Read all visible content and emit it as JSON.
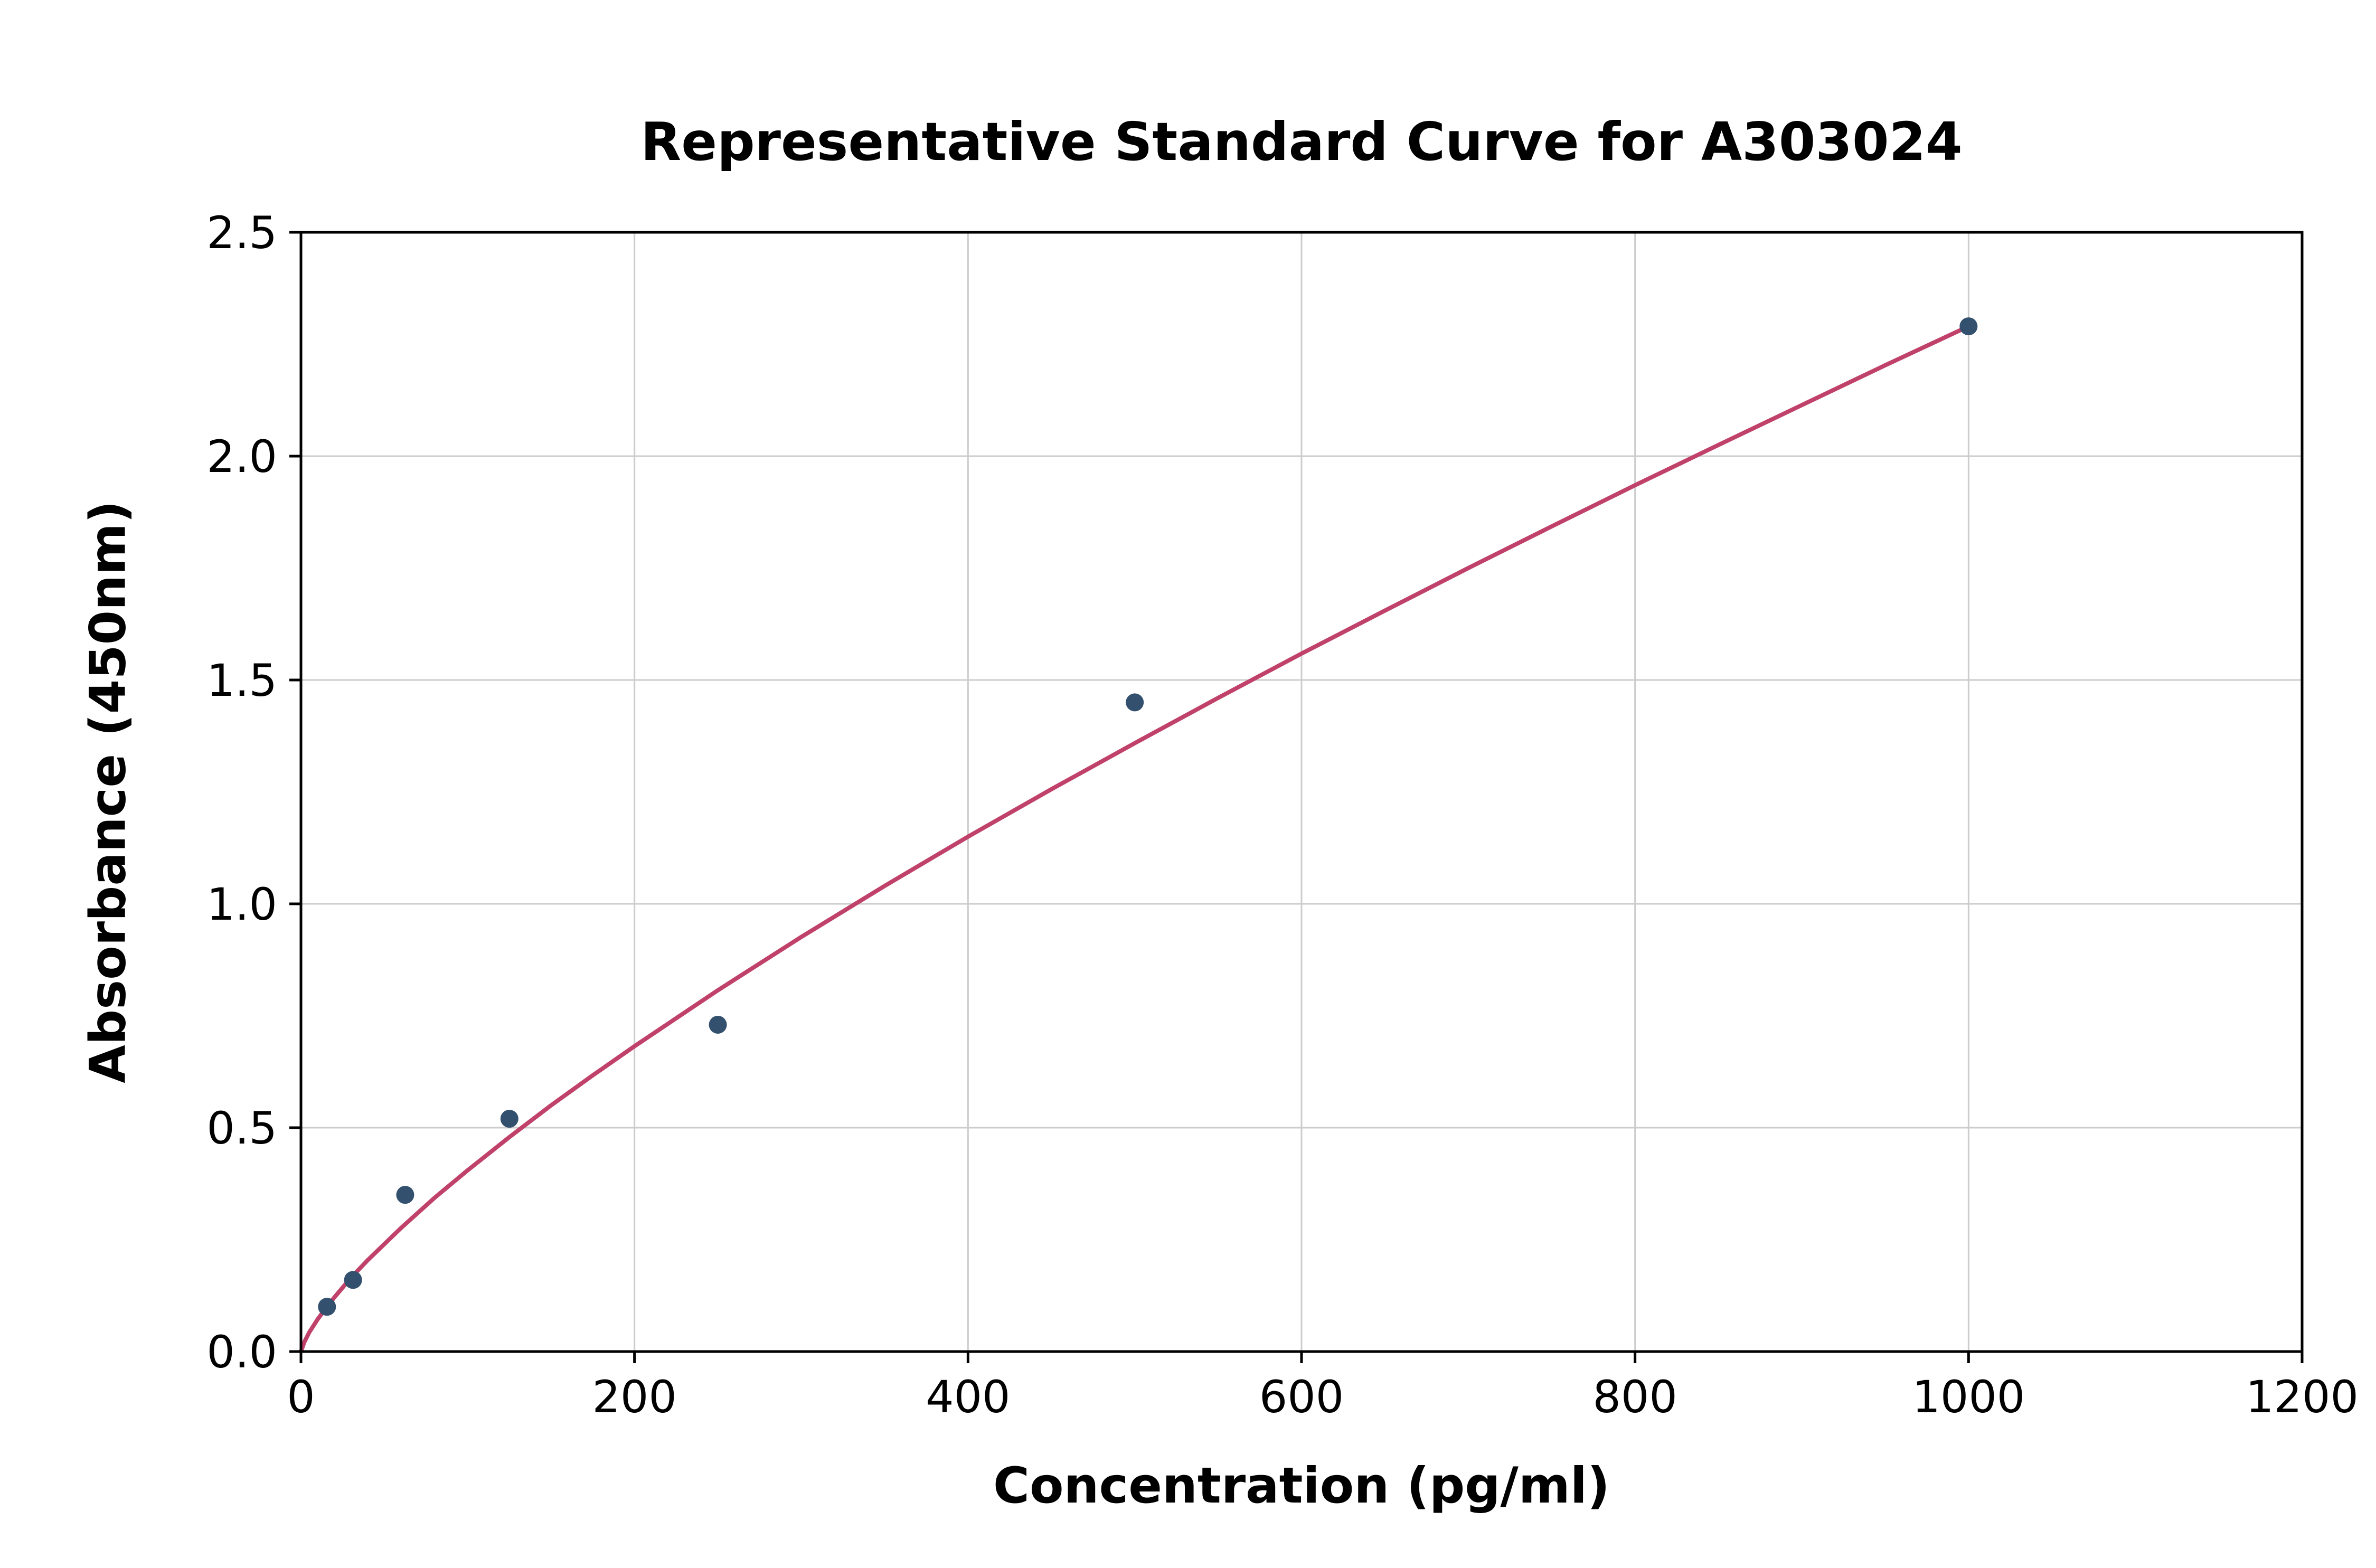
{
  "chart_data": {
    "type": "scatter",
    "title": "Representative Standard Curve for A303024",
    "xlabel": "Concentration (pg/ml)",
    "ylabel": "Absorbance (450nm)",
    "xlim": [
      0,
      1200
    ],
    "ylim": [
      0,
      2.5
    ],
    "x_ticks": [
      0,
      200,
      400,
      600,
      800,
      1000,
      1200
    ],
    "y_ticks": [
      0.0,
      0.5,
      1.0,
      1.5,
      2.0,
      2.5
    ],
    "grid": true,
    "legend": "none",
    "points": {
      "x": [
        15.6,
        31.25,
        62.5,
        125,
        250,
        500,
        1000
      ],
      "y": [
        0.1,
        0.16,
        0.35,
        0.52,
        0.73,
        1.45,
        2.29
      ]
    },
    "fit_curve": {
      "x": [
        0,
        2,
        5,
        10,
        15,
        20,
        30,
        40,
        60,
        80,
        100,
        125,
        150,
        175,
        200,
        250,
        300,
        350,
        400,
        450,
        500,
        550,
        600,
        650,
        700,
        750,
        800,
        850,
        900,
        950,
        1000
      ],
      "y": [
        0.0,
        0.021,
        0.043,
        0.072,
        0.097,
        0.121,
        0.165,
        0.204,
        0.276,
        0.343,
        0.405,
        0.479,
        0.55,
        0.617,
        0.682,
        0.807,
        0.926,
        1.04,
        1.15,
        1.256,
        1.359,
        1.46,
        1.559,
        1.655,
        1.75,
        1.843,
        1.935,
        2.025,
        2.114,
        2.203,
        2.29
      ]
    },
    "colors": {
      "points": "#33506e",
      "curve": "#c0426b",
      "grid": "#cccccc",
      "axis": "#000000"
    }
  }
}
